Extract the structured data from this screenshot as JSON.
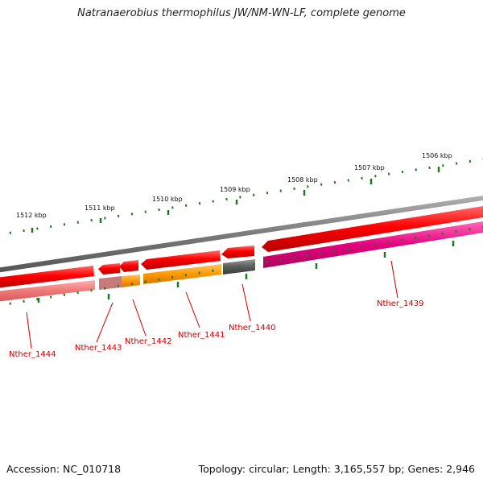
{
  "title": "Natranaerobius thermophilus JW/NM-WN-LF, complete genome",
  "footer": {
    "accession": "Accession: NC_010718",
    "stats": "Topology: circular; Length: 3,165,557 bp; Genes: 2,946"
  },
  "kbp_labels": [
    "1512 kbp",
    "1511 kbp",
    "1510 kbp",
    "1509 kbp",
    "1508 kbp",
    "1507 kbp",
    "1506 kbp"
  ],
  "gene_labels": [
    "Nther_1444",
    "Nther_1443",
    "Nther_1442",
    "Nther_1441",
    "Nther_1440",
    "Nther_1439"
  ],
  "colors": {
    "backbone": "#7a7a7a",
    "forward_cds": "#e60000",
    "cog_orange": "#ff8c00",
    "cog_gray": "#5a5a5a",
    "cog_magenta": "#e6007e",
    "cog_pink": "#ee7777",
    "tick": "#1f7a1f",
    "label": "#cc0000"
  }
}
